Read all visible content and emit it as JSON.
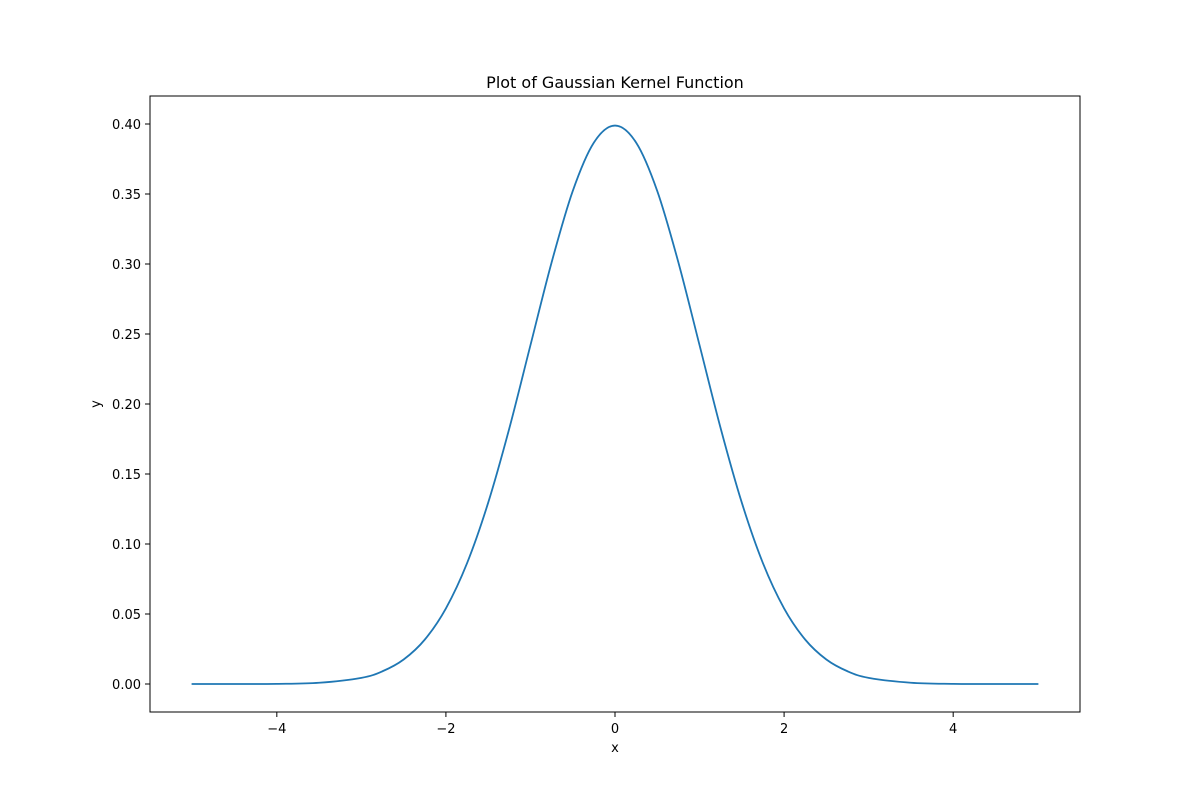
{
  "chart_data": {
    "type": "line",
    "title": "Plot of Gaussian Kernel Function",
    "xlabel": "x",
    "ylabel": "y",
    "xlim": [
      -5.5,
      5.5
    ],
    "ylim": [
      -0.02,
      0.42
    ],
    "grid": false,
    "xticks": [
      -4,
      -2,
      0,
      2,
      4
    ],
    "xtick_labels": [
      "−4",
      "−2",
      "0",
      "2",
      "4"
    ],
    "yticks": [
      0.0,
      0.05,
      0.1,
      0.15,
      0.2,
      0.25,
      0.3,
      0.35,
      0.4
    ],
    "ytick_labels": [
      "0.00",
      "0.05",
      "0.10",
      "0.15",
      "0.20",
      "0.25",
      "0.30",
      "0.35",
      "0.40"
    ],
    "series": [
      {
        "color": "#1f77b4",
        "x": [
          -5.0,
          -4.5,
          -4.0,
          -3.5,
          -3.0,
          -2.75,
          -2.5,
          -2.25,
          -2.0,
          -1.75,
          -1.5,
          -1.25,
          -1.0,
          -0.75,
          -0.5,
          -0.25,
          0.0,
          0.25,
          0.5,
          0.75,
          1.0,
          1.25,
          1.5,
          1.75,
          2.0,
          2.25,
          2.5,
          2.75,
          3.0,
          3.5,
          4.0,
          4.5,
          5.0
        ],
        "y": [
          0.0,
          0.0,
          0.0001,
          0.0009,
          0.0044,
          0.0091,
          0.0175,
          0.0317,
          0.054,
          0.0863,
          0.1295,
          0.1826,
          0.242,
          0.3011,
          0.3521,
          0.3867,
          0.3989,
          0.3867,
          0.3521,
          0.3011,
          0.242,
          0.1826,
          0.1295,
          0.0863,
          0.054,
          0.0317,
          0.0175,
          0.0091,
          0.0044,
          0.0009,
          0.0001,
          0.0,
          0.0
        ]
      }
    ]
  }
}
